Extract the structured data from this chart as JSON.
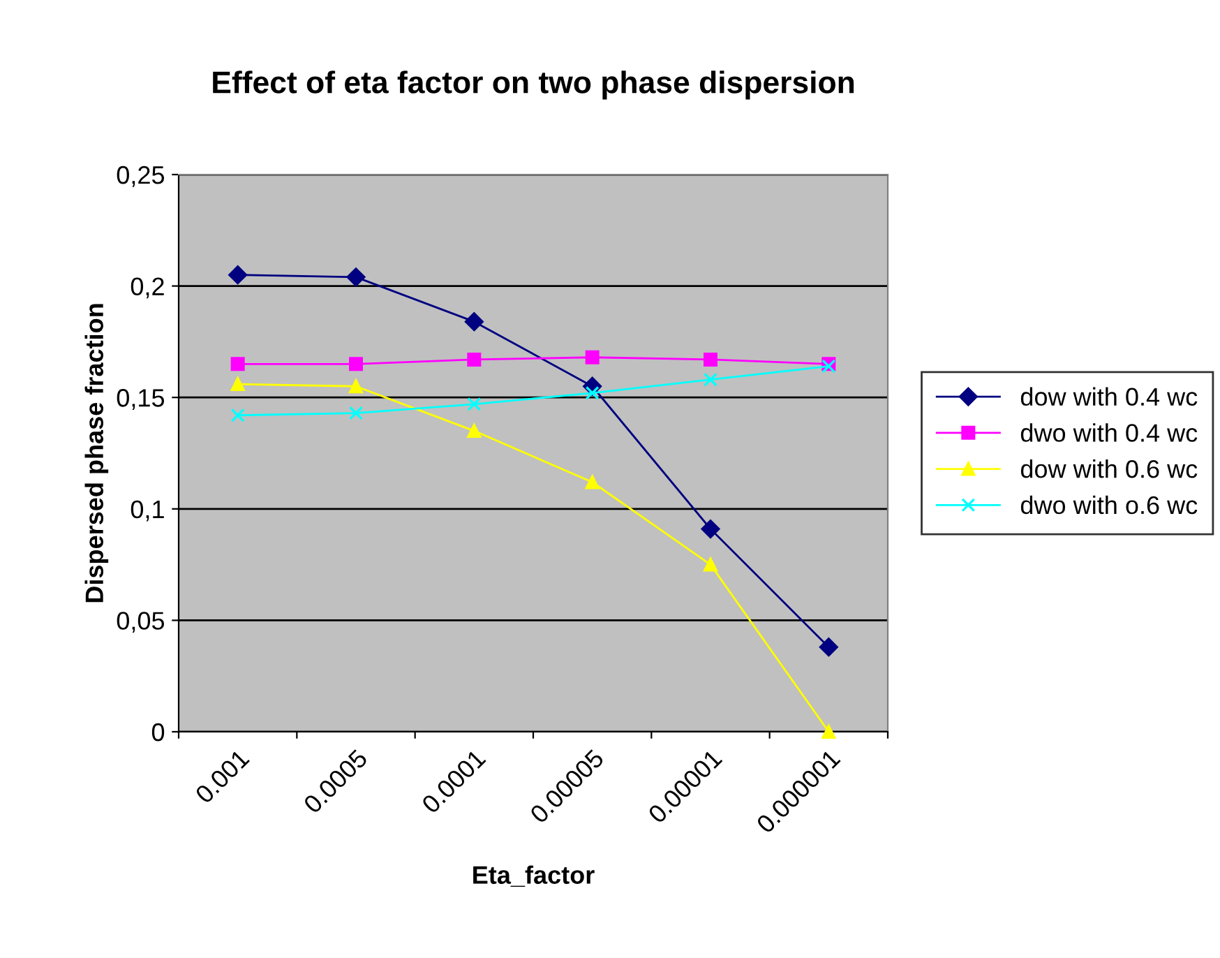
{
  "chart_data": {
    "type": "line",
    "title": "Effect of eta factor on two phase dispersion",
    "xlabel": "Eta_factor",
    "ylabel": "Dispersed phase fraction",
    "categories": [
      "0.001",
      "0.0005",
      "0.0001",
      "0.00005",
      "0.00001",
      "0.000001"
    ],
    "ylim": [
      0,
      0.25
    ],
    "yticks": [
      {
        "value": 0,
        "label": "0"
      },
      {
        "value": 0.05,
        "label": "0,05"
      },
      {
        "value": 0.1,
        "label": "0,1"
      },
      {
        "value": 0.15,
        "label": "0,15"
      },
      {
        "value": 0.2,
        "label": "0,2"
      },
      {
        "value": 0.25,
        "label": "0,25"
      }
    ],
    "grid": "y",
    "legend": "right",
    "series": [
      {
        "name": "dow with 0.4 wc",
        "color": "#000080",
        "marker": "diamond",
        "values": [
          0.205,
          0.204,
          0.184,
          0.155,
          0.091,
          0.038
        ]
      },
      {
        "name": "dwo with 0.4 wc",
        "color": "#ff00ff",
        "marker": "square",
        "values": [
          0.165,
          0.165,
          0.167,
          0.168,
          0.167,
          0.165
        ]
      },
      {
        "name": "dow with 0.6 wc",
        "color": "#ffff00",
        "marker": "triangle",
        "values": [
          0.156,
          0.155,
          0.135,
          0.112,
          0.075,
          0
        ]
      },
      {
        "name": "dwo with o.6 wc",
        "color": "#00ffff",
        "marker": "cross",
        "values": [
          0.142,
          0.143,
          0.147,
          0.152,
          0.158,
          0.164
        ]
      }
    ]
  }
}
